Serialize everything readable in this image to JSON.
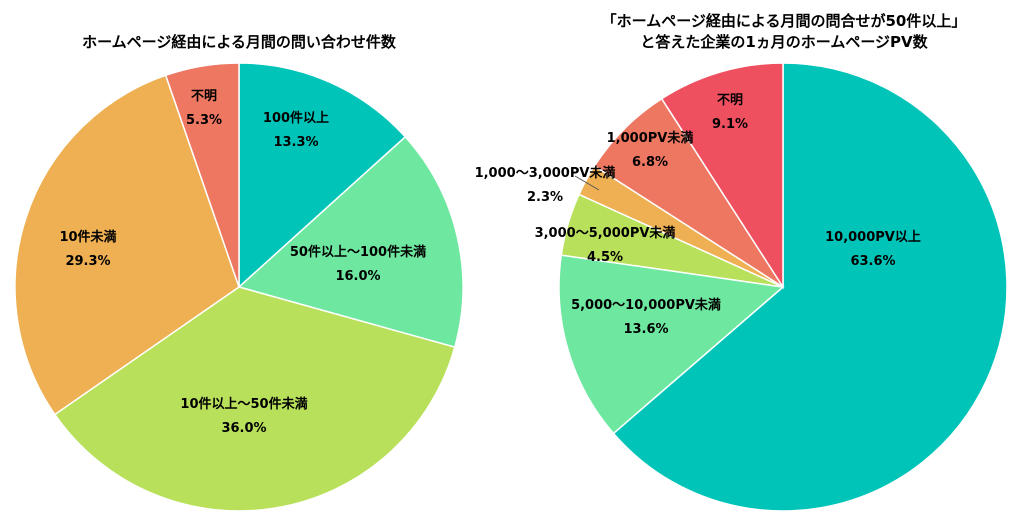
{
  "chart_data": [
    {
      "type": "pie",
      "title": "ホームページ経由による月間の問い合わせ件数",
      "start": "12 o'clock",
      "direction": "clockwise",
      "slices": [
        {
          "label": "100件以上",
          "value": 13.3,
          "value_text": "13.3%",
          "color": "#00c4b8"
        },
        {
          "label": "50件以上～100件未満",
          "value": 16.0,
          "value_text": "16.0%",
          "color": "#6ee8a0"
        },
        {
          "label": "10件以上～50件未満",
          "value": 36.0,
          "value_text": "36.0%",
          "color": "#b8e05a"
        },
        {
          "label": "10件未満",
          "value": 29.3,
          "value_text": "29.3%",
          "color": "#eeb052"
        },
        {
          "label": "不明",
          "value": 5.3,
          "value_text": "5.3%",
          "color": "#ee7762"
        }
      ]
    },
    {
      "type": "pie",
      "title_lines": [
        "「ホームページ経由による月間の問合せが50件以上」",
        "と答えた企業の1ヵ月のホームページPV数"
      ],
      "start": "12 o'clock",
      "direction": "clockwise",
      "slices": [
        {
          "label": "10,000PV以上",
          "value": 63.6,
          "value_text": "63.6%",
          "color": "#00c4b8"
        },
        {
          "label": "5,000～10,000PV未満",
          "value": 13.6,
          "value_text": "13.6%",
          "color": "#6ee8a0"
        },
        {
          "label": "3,000～5,000PV未満",
          "value": 4.5,
          "value_text": "4.5%",
          "color": "#b8e05a"
        },
        {
          "label": "1,000～3,000PV未満",
          "value": 2.3,
          "value_text": "2.3%",
          "color": "#eeb052"
        },
        {
          "label": "1,000PV未満",
          "value": 6.8,
          "value_text": "6.8%",
          "color": "#ee7762"
        },
        {
          "label": "不明",
          "value": 9.1,
          "value_text": "9.1%",
          "color": "#ee5060"
        }
      ]
    }
  ]
}
